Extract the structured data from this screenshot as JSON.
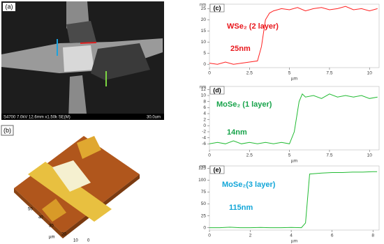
{
  "panels": {
    "a": {
      "label": "(a)",
      "caption": "S4700 7.0kV 12.6mm x1.50k SE(M)",
      "scale": "30.0um"
    },
    "b": {
      "label": "(b)",
      "axis_unit": "µm",
      "axis_numbers": [
        "50",
        "40",
        "30",
        "20",
        "10",
        "0"
      ]
    }
  },
  "chart_data": [
    {
      "type": "line",
      "panel_label": "(c)",
      "y_label": "nm",
      "x_label": "µm",
      "color": "#ff2020",
      "annotation": "WSe₂ (2 layer)",
      "thickness": "25nm",
      "annotation_color": "#e8161b",
      "x": [
        0,
        0.5,
        1,
        1.5,
        2,
        2.5,
        3,
        3.25,
        3.5,
        3.75,
        4,
        4.5,
        5,
        5.5,
        6,
        6.5,
        7,
        7.5,
        8,
        8.5,
        9,
        9.5,
        10,
        10.5
      ],
      "values": [
        0.5,
        0,
        1,
        0,
        0.5,
        1,
        1.5,
        8,
        20,
        23,
        24,
        25,
        24.5,
        25.5,
        24,
        25,
        25.5,
        24.5,
        25,
        26,
        24.5,
        25,
        24,
        25
      ],
      "xlim": [
        0,
        10.6
      ],
      "ylim": [
        -1.5,
        27
      ],
      "xticks": [
        0,
        2.5,
        5,
        7.5,
        10
      ],
      "yticks": [
        0,
        5,
        10,
        15,
        20,
        25
      ]
    },
    {
      "type": "line",
      "panel_label": "(d)",
      "y_label": "nm",
      "x_label": "µm",
      "color": "#22bb33",
      "annotation": "MoSe₂ (1 layer)",
      "thickness": "14nm",
      "annotation_color": "#17a34a",
      "x": [
        0,
        0.5,
        1,
        1.5,
        2,
        2.5,
        3,
        3.5,
        4,
        4.5,
        5,
        5.3,
        5.6,
        5.8,
        6,
        6.5,
        7,
        7.5,
        8,
        8.5,
        9,
        9.5,
        10,
        10.5
      ],
      "values": [
        -6,
        -5.5,
        -6,
        -5,
        -6,
        -5.5,
        -6,
        -5.5,
        -6,
        -5.5,
        -6,
        -2,
        8,
        10.5,
        9.5,
        10,
        9,
        10.5,
        9.5,
        10,
        9.5,
        10,
        9,
        9.5
      ],
      "xlim": [
        0,
        10.6
      ],
      "ylim": [
        -8,
        13
      ],
      "xticks": [
        0,
        2.5,
        5,
        7.5,
        10
      ],
      "yticks": [
        -6,
        -4,
        -2,
        0,
        2,
        4,
        6,
        8,
        10,
        12
      ]
    },
    {
      "type": "line",
      "panel_label": "(e)",
      "y_label": "nm",
      "x_label": "µm",
      "color": "#22bb33",
      "annotation": "MoSe₂(3 layer)",
      "thickness": "115nm",
      "annotation_color": "#12a6d8",
      "x": [
        0,
        0.5,
        1,
        1.5,
        2,
        2.5,
        3,
        3.5,
        4,
        4.5,
        4.7,
        4.9,
        5.5,
        6,
        6.5,
        7,
        7.5,
        8,
        8.2
      ],
      "values": [
        0,
        0,
        1,
        0,
        0,
        0.5,
        0,
        0,
        0.5,
        0,
        10,
        113,
        115,
        116,
        116,
        117,
        117,
        118,
        118
      ],
      "xlim": [
        0,
        8.3
      ],
      "ylim": [
        -5,
        130
      ],
      "xticks": [
        0,
        2,
        4,
        6,
        8
      ],
      "yticks": [
        0,
        25,
        50,
        75,
        100,
        125
      ]
    }
  ]
}
